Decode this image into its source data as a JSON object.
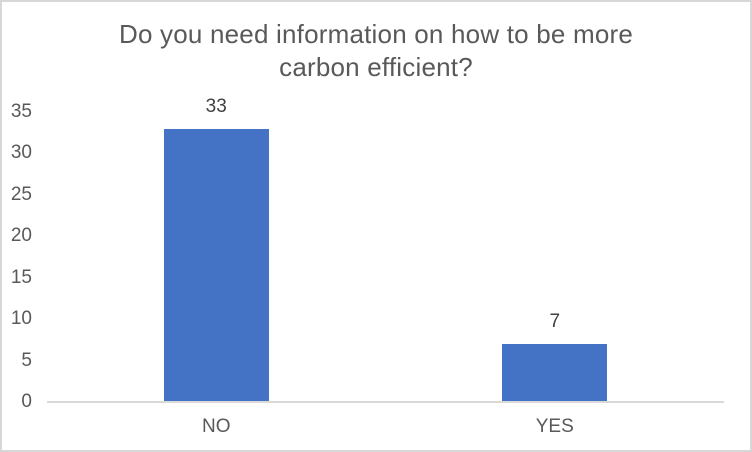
{
  "chart_data": {
    "type": "bar",
    "title": "Do you need information on how to be more carbon efficient?",
    "categories": [
      "NO",
      "YES"
    ],
    "values": [
      33,
      7
    ],
    "data_labels_shown": true,
    "xlabel": "",
    "ylabel": "",
    "ylim": [
      0,
      35
    ],
    "yticks": [
      0,
      5,
      10,
      15,
      20,
      25,
      30,
      35
    ],
    "grid": false,
    "legend": false
  },
  "colors": {
    "bar_fill": "#4472C4",
    "frame_border": "#D7D7D7",
    "axis_line": "#D9D9D9",
    "title_text": "#595959",
    "axis_text": "#595959",
    "data_label_text": "#404040",
    "background": "#FFFFFF"
  }
}
